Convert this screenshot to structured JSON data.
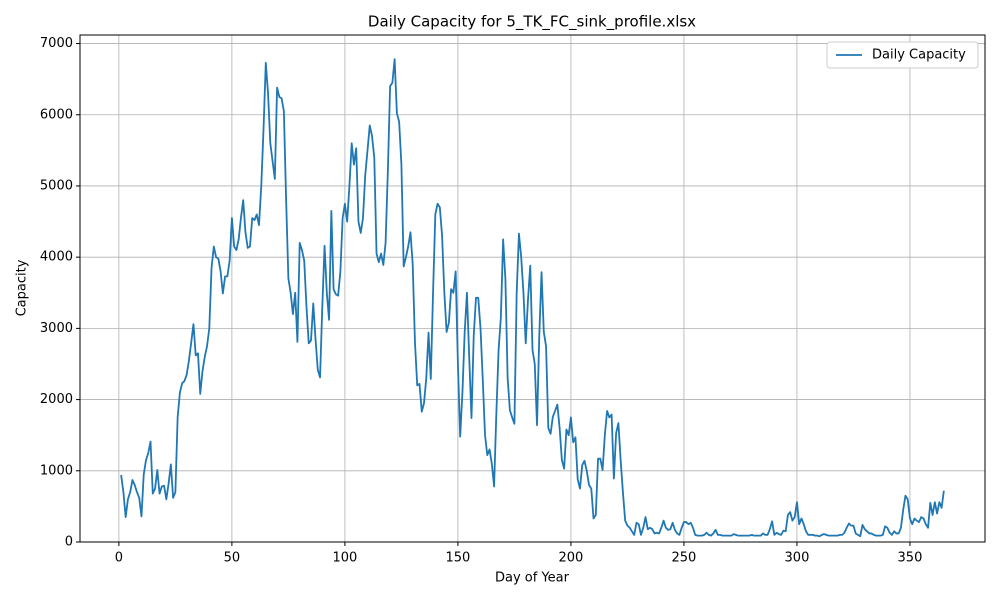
{
  "chart_data": {
    "type": "line",
    "title": "Daily Capacity for 5_TK_FC_sink_profile.xlsx",
    "x_label": "Day of Year",
    "y_label": "Capacity",
    "x": [
      1,
      2,
      3,
      4,
      5,
      6,
      7,
      8,
      9,
      10,
      11,
      12,
      13,
      14,
      15,
      16,
      17,
      18,
      19,
      20,
      21,
      22,
      23,
      24,
      25,
      26,
      27,
      28,
      29,
      30,
      31,
      32,
      33,
      34,
      35,
      36,
      37,
      38,
      39,
      40,
      41,
      42,
      43,
      44,
      45,
      46,
      47,
      48,
      49,
      50,
      51,
      52,
      53,
      54,
      55,
      56,
      57,
      58,
      59,
      60,
      61,
      62,
      63,
      64,
      65,
      66,
      67,
      68,
      69,
      70,
      71,
      72,
      73,
      74,
      75,
      76,
      77,
      78,
      79,
      80,
      81,
      82,
      83,
      84,
      85,
      86,
      87,
      88,
      89,
      90,
      91,
      92,
      93,
      94,
      95,
      96,
      97,
      98,
      99,
      100,
      101,
      102,
      103,
      104,
      105,
      106,
      107,
      108,
      109,
      110,
      111,
      112,
      113,
      114,
      115,
      116,
      117,
      118,
      119,
      120,
      121,
      122,
      123,
      124,
      125,
      126,
      127,
      128,
      129,
      130,
      131,
      132,
      133,
      134,
      135,
      136,
      137,
      138,
      139,
      140,
      141,
      142,
      143,
      144,
      145,
      146,
      147,
      148,
      149,
      150,
      151,
      152,
      153,
      154,
      155,
      156,
      157,
      158,
      159,
      160,
      161,
      162,
      163,
      164,
      165,
      166,
      167,
      168,
      169,
      170,
      171,
      172,
      173,
      174,
      175,
      176,
      177,
      178,
      179,
      180,
      181,
      182,
      183,
      184,
      185,
      186,
      187,
      188,
      189,
      190,
      191,
      192,
      193,
      194,
      195,
      196,
      197,
      198,
      199,
      200,
      201,
      202,
      203,
      204,
      205,
      206,
      207,
      208,
      209,
      210,
      211,
      212,
      213,
      214,
      215,
      216,
      217,
      218,
      219,
      220,
      221,
      222,
      223,
      224,
      225,
      226,
      227,
      228,
      229,
      230,
      231,
      232,
      233,
      234,
      235,
      236,
      237,
      238,
      239,
      240,
      241,
      242,
      243,
      244,
      245,
      246,
      247,
      248,
      249,
      250,
      251,
      252,
      253,
      254,
      255,
      256,
      257,
      258,
      259,
      260,
      261,
      262,
      263,
      264,
      265,
      266,
      267,
      268,
      269,
      270,
      271,
      272,
      273,
      274,
      275,
      276,
      277,
      278,
      279,
      280,
      281,
      282,
      283,
      284,
      285,
      286,
      287,
      288,
      289,
      290,
      291,
      292,
      293,
      294,
      295,
      296,
      297,
      298,
      299,
      300,
      301,
      302,
      303,
      304,
      305,
      306,
      307,
      308,
      309,
      310,
      311,
      312,
      313,
      314,
      315,
      316,
      317,
      318,
      319,
      320,
      321,
      322,
      323,
      324,
      325,
      326,
      327,
      328,
      329,
      330,
      331,
      332,
      333,
      334,
      335,
      336,
      337,
      338,
      339,
      340,
      341,
      342,
      343,
      344,
      345,
      346,
      347,
      348,
      349,
      350,
      351,
      352,
      353,
      354,
      355,
      356,
      357,
      358,
      359,
      360,
      361,
      362,
      363,
      364,
      365
    ],
    "series": [
      {
        "name": "Daily Capacity",
        "color": "#1f77b4",
        "values": [
          940,
          700,
          350,
          600,
          700,
          870,
          800,
          700,
          620,
          360,
          950,
          1150,
          1250,
          1410,
          680,
          750,
          1010,
          680,
          780,
          790,
          600,
          820,
          1090,
          620,
          700,
          1750,
          2100,
          2230,
          2260,
          2350,
          2550,
          2800,
          3060,
          2620,
          2650,
          2080,
          2400,
          2600,
          2750,
          3000,
          3850,
          4150,
          4000,
          3980,
          3800,
          3490,
          3730,
          3730,
          3950,
          4550,
          4150,
          4100,
          4250,
          4550,
          4800,
          4350,
          4130,
          4150,
          4550,
          4520,
          4600,
          4450,
          5000,
          5800,
          6730,
          6300,
          5600,
          5350,
          5100,
          6380,
          6250,
          6230,
          6050,
          4800,
          3700,
          3500,
          3200,
          3500,
          2810,
          4200,
          4100,
          3950,
          3300,
          2790,
          2830,
          3350,
          2850,
          2420,
          2310,
          3300,
          4160,
          3500,
          3120,
          4650,
          3550,
          3480,
          3460,
          3800,
          4550,
          4750,
          4500,
          5000,
          5600,
          5300,
          5530,
          4500,
          4340,
          4550,
          5150,
          5500,
          5850,
          5700,
          5400,
          4050,
          3930,
          4050,
          3890,
          4200,
          5200,
          6400,
          6450,
          6780,
          6020,
          5900,
          5300,
          3870,
          4000,
          4150,
          4350,
          3900,
          2800,
          2200,
          2220,
          1830,
          1950,
          2300,
          2940,
          2290,
          3500,
          4600,
          4750,
          4700,
          4300,
          3500,
          2950,
          3080,
          3550,
          3500,
          3800,
          2500,
          1480,
          2100,
          2950,
          3500,
          2600,
          1740,
          2900,
          3430,
          3430,
          3000,
          2280,
          1500,
          1220,
          1300,
          1100,
          780,
          1800,
          2700,
          3150,
          4250,
          3700,
          2300,
          1850,
          1750,
          1660,
          3500,
          4330,
          4000,
          3500,
          2790,
          3400,
          3880,
          2700,
          2500,
          1640,
          2900,
          3790,
          2950,
          2750,
          1600,
          1520,
          1760,
          1840,
          1930,
          1600,
          1150,
          1030,
          1580,
          1500,
          1750,
          1400,
          1470,
          880,
          750,
          1080,
          1140,
          1000,
          800,
          750,
          330,
          380,
          1170,
          1170,
          1010,
          1500,
          1840,
          1750,
          1790,
          890,
          1530,
          1670,
          1150,
          700,
          300,
          230,
          200,
          150,
          100,
          270,
          250,
          100,
          200,
          350,
          180,
          200,
          180,
          120,
          130,
          120,
          200,
          300,
          200,
          170,
          180,
          270,
          170,
          120,
          100,
          200,
          280,
          280,
          250,
          270,
          200,
          100,
          90,
          90,
          90,
          100,
          130,
          100,
          90,
          120,
          170,
          100,
          100,
          90,
          90,
          90,
          90,
          90,
          110,
          100,
          90,
          90,
          90,
          90,
          90,
          90,
          100,
          90,
          90,
          90,
          90,
          120,
          100,
          100,
          180,
          290,
          100,
          130,
          110,
          100,
          160,
          150,
          380,
          420,
          300,
          350,
          560,
          250,
          330,
          250,
          150,
          100,
          100,
          100,
          90,
          90,
          80,
          100,
          110,
          100,
          90,
          90,
          90,
          90,
          90,
          100,
          100,
          130,
          200,
          260,
          230,
          230,
          120,
          100,
          80,
          240,
          180,
          150,
          120,
          120,
          100,
          90,
          90,
          90,
          100,
          220,
          200,
          130,
          100,
          150,
          120,
          120,
          200,
          450,
          650,
          600,
          330,
          250,
          330,
          300,
          280,
          350,
          330,
          250,
          200,
          550,
          380,
          560,
          400,
          560,
          480,
          720
        ]
      }
    ],
    "xlim": [
      -17.2,
      383.2
    ],
    "ylim": [
      0,
      7120
    ],
    "xticks": [
      0,
      50,
      100,
      150,
      200,
      250,
      300,
      350
    ],
    "yticks": [
      0,
      1000,
      2000,
      3000,
      4000,
      5000,
      6000,
      7000
    ],
    "grid": true,
    "legend": "upper right"
  }
}
